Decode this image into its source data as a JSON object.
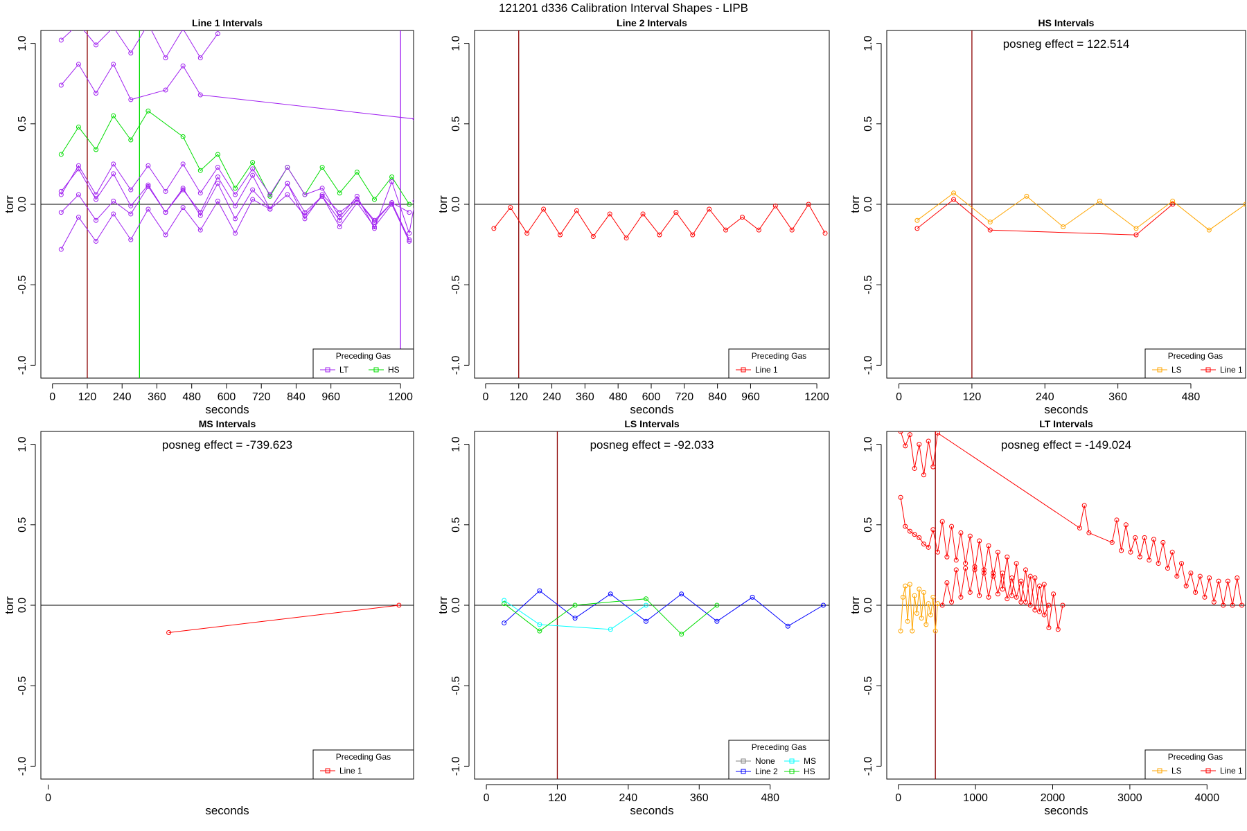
{
  "title": "121201   d336   Calibration Interval Shapes - LIPB",
  "legend_title": "Preceding Gas",
  "colors": {
    "LT": "#a020f0",
    "HS": "#00dd00",
    "Line 1": "#ff0000",
    "LS": "#ffa500",
    "Line 2": "#0000ff",
    "MS": "#00ffff",
    "None": "#808080",
    "vline": "#8b0000"
  },
  "chart_data": [
    {
      "type": "line",
      "title": "Line 1 Intervals",
      "xlabel": "seconds",
      "ylabel": "torr",
      "xlim": [
        -40,
        1245
      ],
      "ylim": [
        -1.08,
        1.08
      ],
      "xticks": [
        0,
        120,
        240,
        360,
        480,
        600,
        720,
        840,
        960,
        1200
      ],
      "yticks": [
        -1.0,
        -0.5,
        0.0,
        0.5,
        1.0
      ],
      "vlines": [
        {
          "x": 120,
          "color": "#8b0000"
        },
        {
          "x": 300,
          "color": "#00dd00"
        },
        {
          "x": 1200,
          "color": "#a020f0"
        }
      ],
      "legend": [
        "LT",
        "HS"
      ],
      "series": [
        {
          "name": "LT",
          "x": [
            30,
            90,
            150,
            210,
            270,
            330,
            390,
            450,
            510,
            570
          ],
          "y": [
            1.02,
            1.12,
            0.99,
            1.1,
            0.94,
            1.12,
            0.91,
            1.09,
            0.91,
            1.06
          ]
        },
        {
          "name": "LT",
          "x": [
            30,
            90,
            150,
            210,
            270,
            390,
            450,
            510,
            1250
          ],
          "y": [
            0.74,
            0.87,
            0.69,
            0.87,
            0.65,
            0.71,
            0.86,
            0.68,
            0.53
          ]
        },
        {
          "name": "HS",
          "x": [
            30,
            90,
            150,
            210,
            270,
            330,
            450,
            510,
            570,
            630,
            690,
            750,
            810,
            870,
            930,
            990,
            1050,
            1110,
            1170,
            1230
          ],
          "y": [
            0.31,
            0.48,
            0.34,
            0.55,
            0.4,
            0.58,
            0.42,
            0.21,
            0.31,
            0.1,
            0.26,
            0.05,
            0.23,
            0.06,
            0.23,
            0.07,
            0.2,
            0.03,
            0.17,
            0.0
          ]
        },
        {
          "name": "LT",
          "x": [
            30,
            90,
            150,
            210,
            270,
            330,
            390,
            450,
            510,
            570,
            630,
            690,
            750,
            810,
            870,
            930,
            990,
            1050,
            1110,
            1170,
            1230,
            1250
          ],
          "y": [
            0.06,
            0.24,
            0.06,
            0.25,
            0.09,
            0.24,
            0.08,
            0.25,
            0.07,
            0.23,
            0.06,
            0.22,
            0.06,
            0.23,
            0.06,
            0.1,
            -0.08,
            0.05,
            -0.15,
            0.14,
            -0.18,
            0.02
          ]
        },
        {
          "name": "LT",
          "x": [
            30,
            90,
            150,
            210,
            270,
            330,
            390,
            450,
            510,
            570,
            630,
            690,
            750,
            810,
            870,
            930,
            990,
            1050,
            1110,
            1170,
            1230
          ],
          "y": [
            0.08,
            0.22,
            0.03,
            0.19,
            -0.01,
            0.12,
            -0.05,
            0.09,
            -0.05,
            0.17,
            -0.01,
            0.18,
            -0.03,
            0.13,
            -0.05,
            0.05,
            -0.1,
            0.03,
            -0.11,
            0.01,
            -0.22
          ]
        },
        {
          "name": "LT",
          "x": [
            30,
            90,
            150,
            210,
            270,
            330,
            390,
            450,
            510,
            570,
            630,
            690,
            750,
            810,
            870,
            930,
            990,
            1050,
            1110,
            1170,
            1230
          ],
          "y": [
            -0.05,
            0.06,
            -0.1,
            0.02,
            -0.06,
            0.11,
            -0.05,
            0.1,
            -0.07,
            0.13,
            -0.09,
            0.09,
            -0.03,
            0.13,
            -0.09,
            0.06,
            -0.05,
            0.03,
            -0.1,
            0.01,
            -0.05
          ]
        },
        {
          "name": "LT",
          "x": [
            30,
            90,
            150,
            210,
            270,
            330,
            390,
            450,
            510,
            570,
            630,
            690,
            750,
            810,
            870,
            930,
            990,
            1050,
            1110,
            1170,
            1230
          ],
          "y": [
            -0.28,
            -0.08,
            -0.23,
            -0.06,
            -0.22,
            -0.03,
            -0.19,
            -0.02,
            -0.16,
            0.02,
            -0.18,
            0.03,
            -0.03,
            0.06,
            -0.07,
            0.05,
            -0.14,
            0.01,
            -0.14,
            0.0,
            -0.23
          ]
        }
      ]
    },
    {
      "type": "line",
      "title": "Line 2 Intervals",
      "xlabel": "seconds",
      "ylabel": "torr",
      "xlim": [
        -40,
        1245
      ],
      "ylim": [
        -1.08,
        1.08
      ],
      "xticks": [
        0,
        120,
        240,
        360,
        480,
        600,
        720,
        840,
        960,
        1200
      ],
      "yticks": [
        -1.0,
        -0.5,
        0.0,
        0.5,
        1.0
      ],
      "vlines": [
        {
          "x": 120,
          "color": "#8b0000"
        }
      ],
      "legend": [
        "Line 1"
      ],
      "series": [
        {
          "name": "Line 1",
          "x": [
            30,
            90,
            150,
            210,
            270,
            330,
            390,
            450,
            510,
            570,
            630,
            690,
            750,
            810,
            870,
            930,
            990,
            1050,
            1110,
            1170,
            1230
          ],
          "y": [
            -0.15,
            -0.02,
            -0.18,
            -0.03,
            -0.19,
            -0.04,
            -0.2,
            -0.06,
            -0.21,
            -0.06,
            -0.19,
            -0.05,
            -0.19,
            -0.03,
            -0.16,
            -0.08,
            -0.16,
            -0.01,
            -0.16,
            0.0,
            -0.18
          ]
        }
      ]
    },
    {
      "type": "line",
      "title": "HS Intervals",
      "xlabel": "seconds",
      "ylabel": "torr",
      "xlim": [
        -20,
        570
      ],
      "ylim": [
        -1.08,
        1.08
      ],
      "xticks": [
        0,
        120,
        240,
        360,
        480
      ],
      "yticks": [
        -1.0,
        -0.5,
        0.0,
        0.5,
        1.0
      ],
      "annotation": "posneg effect = 122.514",
      "vlines": [
        {
          "x": 120,
          "color": "#8b0000"
        }
      ],
      "legend": [
        "LS",
        "Line 1"
      ],
      "series": [
        {
          "name": "LS",
          "x": [
            30,
            90,
            150,
            210,
            270,
            330,
            390,
            450,
            510,
            570
          ],
          "y": [
            -0.1,
            0.07,
            -0.11,
            0.05,
            -0.14,
            0.02,
            -0.15,
            0.02,
            -0.16,
            0.0
          ]
        },
        {
          "name": "Line 1",
          "x": [
            30,
            90,
            150,
            390,
            450
          ],
          "y": [
            -0.15,
            0.03,
            -0.16,
            -0.19,
            0.0
          ]
        }
      ]
    },
    {
      "type": "line",
      "title": "MS Intervals",
      "xlabel": "seconds",
      "ylabel": "torr",
      "xlim": [
        -20,
        1000
      ],
      "ylim": [
        -1.08,
        1.08
      ],
      "xticks": [
        0
      ],
      "yticks": [
        -1.0,
        -0.5,
        0.0,
        0.5,
        1.0
      ],
      "annotation": "posneg effect = -739.623",
      "vlines": [],
      "legend": [
        "Line 1"
      ],
      "series": [
        {
          "name": "Line 1",
          "x": [
            330,
            960
          ],
          "y": [
            -0.17,
            0.0
          ]
        }
      ]
    },
    {
      "type": "line",
      "title": "LS Intervals",
      "xlabel": "seconds",
      "ylabel": "torr",
      "xlim": [
        -20,
        580
      ],
      "ylim": [
        -1.08,
        1.08
      ],
      "xticks": [
        0,
        120,
        240,
        360,
        480
      ],
      "yticks": [
        -1.0,
        -0.5,
        0.0,
        0.5,
        1.0
      ],
      "annotation": "posneg effect = -92.033",
      "vlines": [
        {
          "x": 120,
          "color": "#8b0000"
        }
      ],
      "legend": [
        "None",
        "Line 2",
        "MS",
        "HS"
      ],
      "series": [
        {
          "name": "Line 2",
          "x": [
            30,
            90,
            150,
            210,
            270,
            330,
            390,
            450,
            510,
            570
          ],
          "y": [
            -0.11,
            0.09,
            -0.08,
            0.07,
            -0.1,
            0.07,
            -0.1,
            0.05,
            -0.13,
            0.0
          ]
        },
        {
          "name": "MS",
          "x": [
            30,
            90,
            210,
            270
          ],
          "y": [
            0.03,
            -0.12,
            -0.15,
            0.0
          ]
        },
        {
          "name": "HS",
          "x": [
            30,
            90,
            150,
            270,
            330,
            390
          ],
          "y": [
            0.01,
            -0.16,
            0.0,
            0.04,
            -0.18,
            0.0
          ]
        }
      ]
    },
    {
      "type": "line",
      "title": "LT Intervals",
      "xlabel": "seconds",
      "ylabel": "torr",
      "xlim": [
        -150,
        4500
      ],
      "ylim": [
        -1.08,
        1.08
      ],
      "xticks": [
        0,
        1000,
        2000,
        3000,
        4000
      ],
      "yticks": [
        -1.0,
        -0.5,
        0.0,
        0.5,
        1.0
      ],
      "annotation": "posneg effect = -149.024",
      "vlines": [
        {
          "x": 480,
          "color": "#8b0000"
        }
      ],
      "legend": [
        "LS",
        "Line 1"
      ],
      "series": [
        {
          "name": "Line 1",
          "x": [
            30,
            90,
            150,
            210,
            270,
            330,
            390,
            450,
            510,
            2350,
            2410,
            2470,
            2770,
            2830,
            2890,
            2950,
            3010,
            3070,
            3130,
            3190,
            3250,
            3310,
            3370,
            3430,
            3490,
            3550,
            3610,
            3670,
            3730,
            3790,
            3850,
            3910,
            3970,
            4030,
            4090,
            4150,
            4210,
            4270,
            4330,
            4390,
            4450
          ],
          "y": [
            1.08,
            0.99,
            1.06,
            0.85,
            1.0,
            0.81,
            1.02,
            0.86,
            1.07,
            0.48,
            0.62,
            0.45,
            0.39,
            0.53,
            0.34,
            0.5,
            0.33,
            0.42,
            0.3,
            0.42,
            0.28,
            0.41,
            0.26,
            0.39,
            0.23,
            0.33,
            0.18,
            0.26,
            0.12,
            0.2,
            0.08,
            0.18,
            0.05,
            0.17,
            0.02,
            0.15,
            0.0,
            0.15,
            0.0,
            0.17,
            0.0
          ]
        },
        {
          "name": "Line 1",
          "x": [
            30,
            90,
            150,
            210,
            270,
            330,
            390,
            450,
            510,
            570,
            630,
            690,
            750,
            810,
            870,
            930,
            990,
            1050,
            1110,
            1170,
            1230,
            1290,
            1350,
            1410,
            1470,
            1530,
            1590,
            1650,
            1710,
            1770,
            1830,
            1890,
            1950,
            2010,
            2070,
            2130
          ],
          "y": [
            0.67,
            0.49,
            0.46,
            0.44,
            0.42,
            0.38,
            0.36,
            0.47,
            0.33,
            0.52,
            0.3,
            0.49,
            0.28,
            0.45,
            0.26,
            0.43,
            0.22,
            0.4,
            0.2,
            0.37,
            0.18,
            0.33,
            0.1,
            0.3,
            0.06,
            0.26,
            0.02,
            0.22,
            0.0,
            0.17,
            -0.04,
            0.13,
            -0.14,
            0.07,
            -0.15,
            0.0
          ]
        },
        {
          "name": "Line 1",
          "x": [
            570,
            630,
            690,
            750,
            810,
            870,
            930,
            990,
            1050,
            1110,
            1170,
            1230,
            1290,
            1350,
            1410,
            1470,
            1530,
            1590,
            1650,
            1710,
            1770,
            1830,
            1890,
            1950
          ],
          "y": [
            0.0,
            0.14,
            0.02,
            0.22,
            0.05,
            0.23,
            0.08,
            0.24,
            0.06,
            0.22,
            0.05,
            0.2,
            0.07,
            0.2,
            0.04,
            0.17,
            0.05,
            0.15,
            0.02,
            0.18,
            -0.03,
            0.12,
            -0.06,
            0.0
          ]
        },
        {
          "name": "LS",
          "x": [
            30,
            60,
            90,
            120,
            150,
            180,
            210,
            240,
            270,
            300,
            330,
            360,
            390,
            420,
            450,
            480,
            510
          ],
          "y": [
            -0.16,
            0.05,
            0.12,
            -0.1,
            0.13,
            -0.16,
            0.06,
            -0.05,
            0.1,
            -0.08,
            0.08,
            -0.12,
            0.01,
            -0.06,
            0.05,
            -0.16,
            0.01
          ]
        }
      ]
    }
  ]
}
